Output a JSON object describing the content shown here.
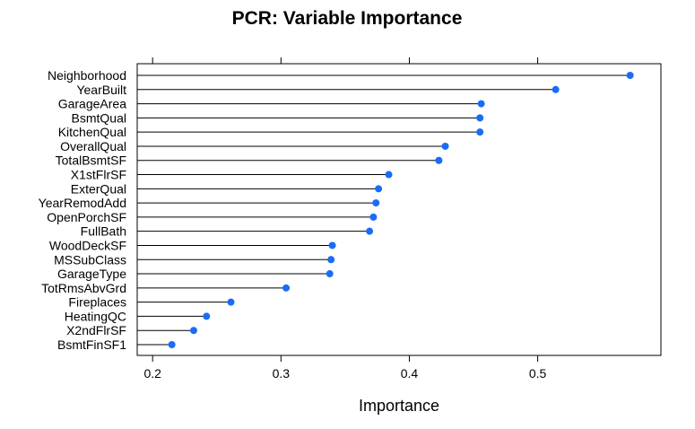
{
  "chart_data": {
    "type": "dot",
    "title": "PCR: Variable Importance",
    "xlabel": "Importance",
    "ylabel": "",
    "xlim": [
      0.188,
      0.596
    ],
    "x_ticks": [
      0.2,
      0.3,
      0.4,
      0.5
    ],
    "x_tick_labels": [
      "0.2",
      "0.3",
      "0.4",
      "0.5"
    ],
    "point_color": "#1a6cf6",
    "line_color": "#000000",
    "categories": [
      "Neighborhood",
      "YearBuilt",
      "GarageArea",
      "BsmtQual",
      "KitchenQual",
      "OverallQual",
      "TotalBsmtSF",
      "X1stFlrSF",
      "ExterQual",
      "YearRemodAdd",
      "OpenPorchSF",
      "FullBath",
      "WoodDeckSF",
      "MSSubClass",
      "GarageType",
      "TotRmsAbvGrd",
      "Fireplaces",
      "HeatingQC",
      "X2ndFlrSF",
      "BsmtFinSF1"
    ],
    "values": [
      0.572,
      0.514,
      0.456,
      0.455,
      0.455,
      0.428,
      0.423,
      0.384,
      0.376,
      0.374,
      0.372,
      0.369,
      0.34,
      0.339,
      0.338,
      0.304,
      0.261,
      0.242,
      0.232,
      0.215
    ]
  }
}
